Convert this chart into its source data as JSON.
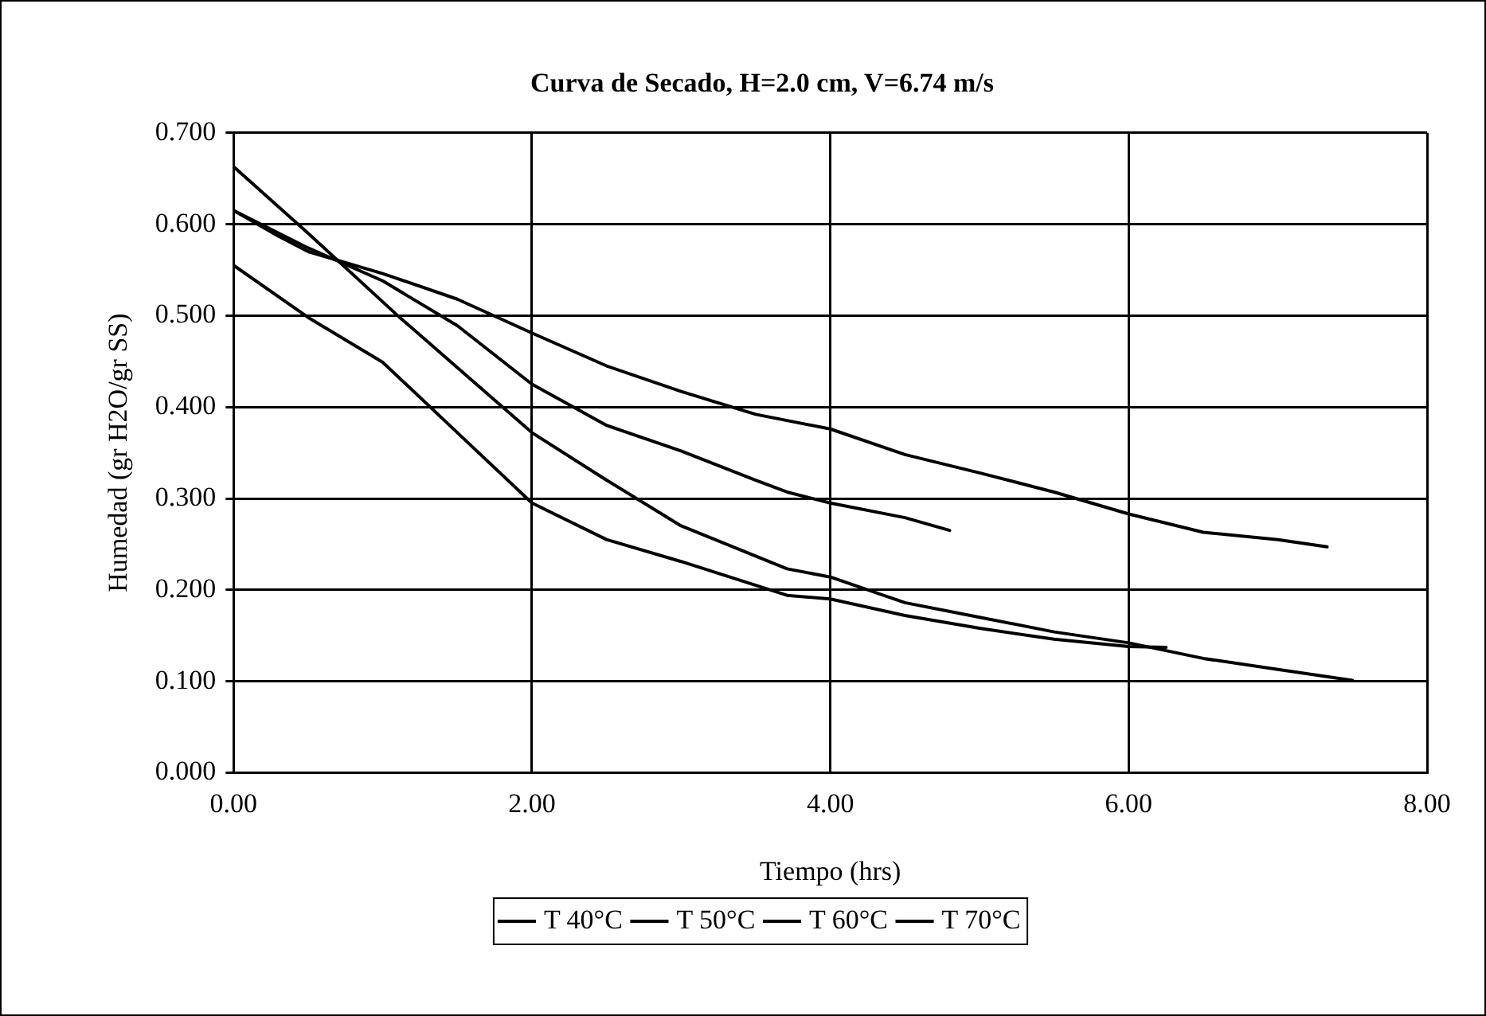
{
  "chart_data": {
    "type": "line",
    "title": "Curva de Secado, H=2.0 cm, V=6.74 m/s",
    "xlabel": "Tiempo (hrs)",
    "ylabel": "Humedad (gr H2O/gr SS)",
    "series": [
      {
        "name": "T 40°C",
        "color": "#000000",
        "x": [
          0,
          0.3,
          0.5,
          1,
          1.5,
          2,
          2.5,
          3,
          3.5,
          4,
          4.5,
          5,
          5.5,
          6,
          6.5,
          7,
          7.33
        ],
        "values": [
          0.615,
          0.587,
          0.57,
          0.546,
          0.518,
          0.481,
          0.445,
          0.417,
          0.392,
          0.376,
          0.348,
          0.328,
          0.307,
          0.283,
          0.263,
          0.255,
          0.247
        ]
      },
      {
        "name": "T 50°C",
        "color": "#000000",
        "x": [
          0,
          0.5,
          1,
          1.5,
          2,
          2.5,
          3,
          3.5,
          3.71,
          4,
          4.5,
          4.8
        ],
        "values": [
          0.615,
          0.574,
          0.538,
          0.489,
          0.425,
          0.38,
          0.352,
          0.32,
          0.307,
          0.295,
          0.279,
          0.265
        ]
      },
      {
        "name": "T 60°C",
        "color": "#000000",
        "x": [
          0,
          0.5,
          1.1,
          2,
          2.5,
          3,
          3.71,
          4,
          4.5,
          5,
          5.5,
          6,
          6.5,
          7,
          7.5
        ],
        "values": [
          0.663,
          0.59,
          0.5,
          0.372,
          0.32,
          0.27,
          0.223,
          0.214,
          0.186,
          0.17,
          0.154,
          0.142,
          0.125,
          0.113,
          0.101
        ]
      },
      {
        "name": "T 70°C",
        "color": "#000000",
        "x": [
          0,
          0.5,
          1,
          1.5,
          2,
          2.5,
          3,
          3.71,
          4,
          4.5,
          5,
          5.5,
          6,
          6.25
        ],
        "values": [
          0.555,
          0.498,
          0.449,
          0.372,
          0.295,
          0.255,
          0.231,
          0.194,
          0.19,
          0.172,
          0.158,
          0.146,
          0.138,
          0.137
        ]
      }
    ],
    "xlim": [
      0,
      8
    ],
    "xticks": [
      {
        "value": 0,
        "label": "0.00"
      },
      {
        "value": 2,
        "label": "2.00"
      },
      {
        "value": 4,
        "label": "4.00"
      },
      {
        "value": 6,
        "label": "6.00"
      },
      {
        "value": 8,
        "label": "8.00"
      }
    ],
    "ylim": [
      0,
      0.7
    ],
    "yticks": [
      {
        "value": 0,
        "label": "0.000"
      },
      {
        "value": 0.1,
        "label": "0.100"
      },
      {
        "value": 0.2,
        "label": "0.200"
      },
      {
        "value": 0.3,
        "label": "0.300"
      },
      {
        "value": 0.4,
        "label": "0.400"
      },
      {
        "value": 0.5,
        "label": "0.500"
      },
      {
        "value": 0.6,
        "label": "0.600"
      },
      {
        "value": 0.7,
        "label": "0.700"
      }
    ],
    "grid": true,
    "legend": "bottom",
    "marker": "none",
    "line_style": "solid"
  }
}
